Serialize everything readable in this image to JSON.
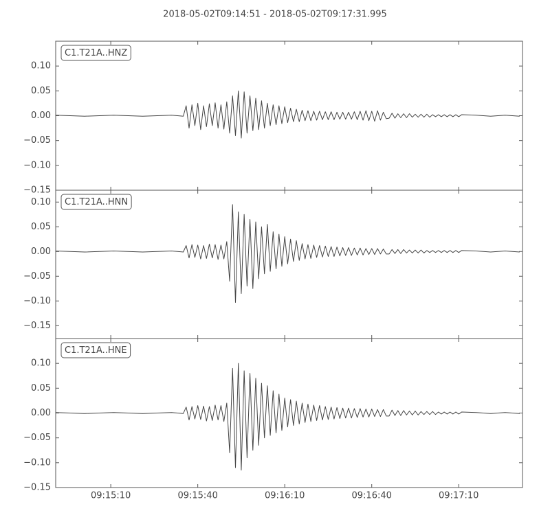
{
  "chart_data": [
    {
      "type": "line",
      "title": "2018-05-02T09:14:51  -  2018-05-02T09:17:31.995",
      "x": [
        0,
        10,
        20,
        30,
        40,
        44,
        45,
        46,
        47,
        48,
        49,
        50,
        51,
        52,
        53,
        54,
        55,
        56,
        57,
        58,
        59,
        60,
        61,
        62,
        63,
        64,
        65,
        66,
        67,
        68,
        69,
        70,
        71,
        72,
        73,
        74,
        75,
        76,
        77,
        78,
        79,
        80,
        81,
        82,
        83,
        84,
        85,
        86,
        87,
        88,
        89,
        90,
        91,
        92,
        93,
        94,
        95,
        96,
        97,
        98,
        99,
        100,
        101,
        102,
        103,
        104,
        105,
        106,
        107,
        108,
        109,
        110,
        111,
        112,
        113,
        114,
        115,
        116,
        117,
        118,
        119,
        120,
        121,
        122,
        123,
        124,
        125,
        126,
        127,
        128,
        129,
        130,
        131,
        132,
        133,
        134,
        135,
        136,
        137,
        138,
        139,
        140,
        145,
        150,
        155,
        160
      ],
      "series": [
        {
          "name": "C1.T21A..HNZ",
          "color": "#444444",
          "values": [
            0.001,
            -0.001,
            0.001,
            -0.001,
            0.001,
            -0.001,
            0.02,
            -0.025,
            0.022,
            -0.02,
            0.025,
            -0.028,
            0.02,
            -0.022,
            0.024,
            -0.02,
            0.026,
            -0.025,
            0.022,
            -0.027,
            0.028,
            -0.035,
            0.04,
            -0.04,
            0.05,
            -0.045,
            0.048,
            -0.035,
            0.04,
            -0.03,
            0.035,
            -0.028,
            0.03,
            -0.025,
            0.025,
            -0.02,
            0.022,
            -0.018,
            0.02,
            -0.016,
            0.018,
            -0.014,
            0.015,
            -0.012,
            0.013,
            -0.012,
            0.011,
            -0.01,
            0.01,
            -0.01,
            0.009,
            -0.009,
            0.009,
            -0.008,
            0.008,
            -0.008,
            0.008,
            -0.008,
            0.007,
            -0.007,
            0.007,
            -0.007,
            0.007,
            -0.007,
            0.008,
            -0.008,
            0.009,
            -0.009,
            0.01,
            -0.01,
            0.009,
            -0.011,
            0.01,
            -0.009,
            0.007,
            -0.006,
            -0.005,
            0.005,
            -0.005,
            0.004,
            -0.004,
            0.004,
            -0.004,
            0.004,
            -0.003,
            0.003,
            -0.003,
            0.003,
            -0.003,
            0.003,
            -0.003,
            0.002,
            -0.002,
            0.002,
            -0.002,
            0.002,
            -0.002,
            0.002,
            -0.002,
            0.002,
            -0.002,
            0.002,
            0.001,
            -0.001,
            0.001,
            -0.001
          ]
        }
      ],
      "xlim": [
        0,
        160.995
      ],
      "ylim": [
        -0.15,
        0.15
      ],
      "yticks": [
        {
          "value": 0.1,
          "label": "0.10"
        },
        {
          "value": 0.05,
          "label": "0.05"
        },
        {
          "value": 0,
          "label": "0.00"
        },
        {
          "value": -0.05,
          "label": "−0.05"
        },
        {
          "value": -0.1,
          "label": "−0.10"
        },
        {
          "value": -0.15,
          "label": "−0.15"
        }
      ]
    },
    {
      "type": "line",
      "x": [
        0,
        10,
        20,
        30,
        40,
        44,
        45,
        46,
        47,
        48,
        49,
        50,
        51,
        52,
        53,
        54,
        55,
        56,
        57,
        58,
        59,
        60,
        61,
        62,
        63,
        64,
        65,
        66,
        67,
        68,
        69,
        70,
        71,
        72,
        73,
        74,
        75,
        76,
        77,
        78,
        79,
        80,
        81,
        82,
        83,
        84,
        85,
        86,
        87,
        88,
        89,
        90,
        91,
        92,
        93,
        94,
        95,
        96,
        97,
        98,
        99,
        100,
        101,
        102,
        103,
        104,
        105,
        106,
        107,
        108,
        109,
        110,
        111,
        112,
        113,
        114,
        115,
        116,
        117,
        118,
        119,
        120,
        121,
        122,
        123,
        124,
        125,
        126,
        127,
        128,
        129,
        130,
        131,
        132,
        133,
        134,
        135,
        136,
        137,
        138,
        139,
        140,
        145,
        150,
        155,
        160
      ],
      "series": [
        {
          "name": "C1.T21A..HNN",
          "color": "#444444",
          "values": [
            0.001,
            -0.001,
            0.001,
            -0.001,
            0.001,
            -0.001,
            0.012,
            -0.013,
            0.014,
            -0.012,
            0.013,
            -0.015,
            0.012,
            -0.014,
            0.015,
            -0.013,
            0.014,
            -0.016,
            0.013,
            -0.015,
            0.02,
            -0.06,
            0.095,
            -0.103,
            0.08,
            -0.085,
            0.075,
            -0.07,
            0.065,
            -0.075,
            0.06,
            -0.055,
            0.05,
            -0.045,
            0.055,
            -0.04,
            0.04,
            -0.035,
            0.035,
            -0.03,
            0.03,
            -0.025,
            0.025,
            -0.02,
            0.022,
            -0.018,
            0.016,
            -0.015,
            0.014,
            -0.014,
            0.013,
            -0.012,
            0.012,
            -0.011,
            0.011,
            -0.01,
            0.01,
            -0.01,
            0.009,
            -0.009,
            0.008,
            -0.008,
            0.008,
            -0.008,
            0.007,
            -0.007,
            0.007,
            -0.007,
            0.006,
            -0.006,
            0.006,
            -0.006,
            0.006,
            -0.005,
            0.005,
            -0.005,
            -0.005,
            0.004,
            -0.004,
            0.004,
            -0.004,
            0.004,
            -0.003,
            0.003,
            -0.003,
            0.003,
            -0.003,
            0.003,
            -0.003,
            0.002,
            -0.002,
            0.002,
            -0.002,
            0.002,
            -0.002,
            0.002,
            -0.002,
            0.002,
            -0.002,
            0.002,
            -0.002,
            0.002,
            0.001,
            -0.001,
            0.001,
            -0.001
          ]
        }
      ],
      "xlim": [
        0,
        160.995
      ],
      "ylim": [
        -0.176,
        0.124
      ],
      "yticks": [
        {
          "value": 0.1,
          "label": "0.10"
        },
        {
          "value": 0.05,
          "label": "0.05"
        },
        {
          "value": 0,
          "label": "0.00"
        },
        {
          "value": -0.05,
          "label": "−0.05"
        },
        {
          "value": -0.1,
          "label": "−0.10"
        },
        {
          "value": -0.15,
          "label": "−0.15"
        }
      ]
    },
    {
      "type": "line",
      "x": [
        0,
        10,
        20,
        30,
        40,
        44,
        45,
        46,
        47,
        48,
        49,
        50,
        51,
        52,
        53,
        54,
        55,
        56,
        57,
        58,
        59,
        60,
        61,
        62,
        63,
        64,
        65,
        66,
        67,
        68,
        69,
        70,
        71,
        72,
        73,
        74,
        75,
        76,
        77,
        78,
        79,
        80,
        81,
        82,
        83,
        84,
        85,
        86,
        87,
        88,
        89,
        90,
        91,
        92,
        93,
        94,
        95,
        96,
        97,
        98,
        99,
        100,
        101,
        102,
        103,
        104,
        105,
        106,
        107,
        108,
        109,
        110,
        111,
        112,
        113,
        114,
        115,
        116,
        117,
        118,
        119,
        120,
        121,
        122,
        123,
        124,
        125,
        126,
        127,
        128,
        129,
        130,
        131,
        132,
        133,
        134,
        135,
        136,
        137,
        138,
        139,
        140,
        145,
        150,
        155,
        160
      ],
      "series": [
        {
          "name": "C1.T21A..HNE",
          "color": "#444444",
          "values": [
            0.001,
            -0.001,
            0.001,
            -0.001,
            0.001,
            -0.001,
            0.012,
            -0.014,
            0.013,
            -0.012,
            0.015,
            -0.013,
            0.014,
            -0.016,
            0.013,
            -0.015,
            0.016,
            -0.014,
            0.015,
            -0.017,
            0.02,
            -0.08,
            0.09,
            -0.11,
            0.1,
            -0.115,
            0.085,
            -0.09,
            0.08,
            -0.075,
            0.07,
            -0.065,
            0.06,
            -0.05,
            0.055,
            -0.045,
            0.045,
            -0.04,
            0.038,
            -0.035,
            0.03,
            -0.028,
            0.027,
            -0.025,
            0.024,
            -0.022,
            0.02,
            -0.019,
            0.018,
            -0.017,
            0.016,
            -0.015,
            0.015,
            -0.014,
            0.013,
            -0.013,
            0.012,
            -0.012,
            0.011,
            -0.011,
            0.01,
            -0.01,
            0.01,
            -0.01,
            0.009,
            -0.009,
            0.009,
            -0.008,
            0.008,
            -0.008,
            0.008,
            -0.007,
            0.007,
            -0.007,
            0.007,
            -0.006,
            -0.006,
            0.006,
            -0.005,
            0.005,
            -0.005,
            0.005,
            -0.004,
            0.004,
            -0.004,
            0.004,
            -0.004,
            0.003,
            -0.003,
            0.003,
            -0.003,
            0.003,
            -0.003,
            0.002,
            -0.002,
            0.002,
            -0.002,
            0.002,
            -0.002,
            0.002,
            -0.002,
            0.002,
            0.001,
            -0.001,
            0.001,
            -0.001
          ]
        }
      ],
      "xlim": [
        0,
        160.995
      ],
      "ylim": [
        -0.15,
        0.15
      ],
      "xticks": [
        {
          "value": 19,
          "label": "09:15:10"
        },
        {
          "value": 49,
          "label": "09:15:40"
        },
        {
          "value": 79,
          "label": "09:16:10"
        },
        {
          "value": 109,
          "label": "09:16:40"
        },
        {
          "value": 139,
          "label": "09:17:10"
        }
      ],
      "yticks": [
        {
          "value": 0.1,
          "label": "0.10"
        },
        {
          "value": 0.05,
          "label": "0.05"
        },
        {
          "value": 0,
          "label": "0.00"
        },
        {
          "value": -0.05,
          "label": "−0.05"
        },
        {
          "value": -0.1,
          "label": "−0.10"
        },
        {
          "value": -0.15,
          "label": "−0.15"
        }
      ]
    }
  ]
}
